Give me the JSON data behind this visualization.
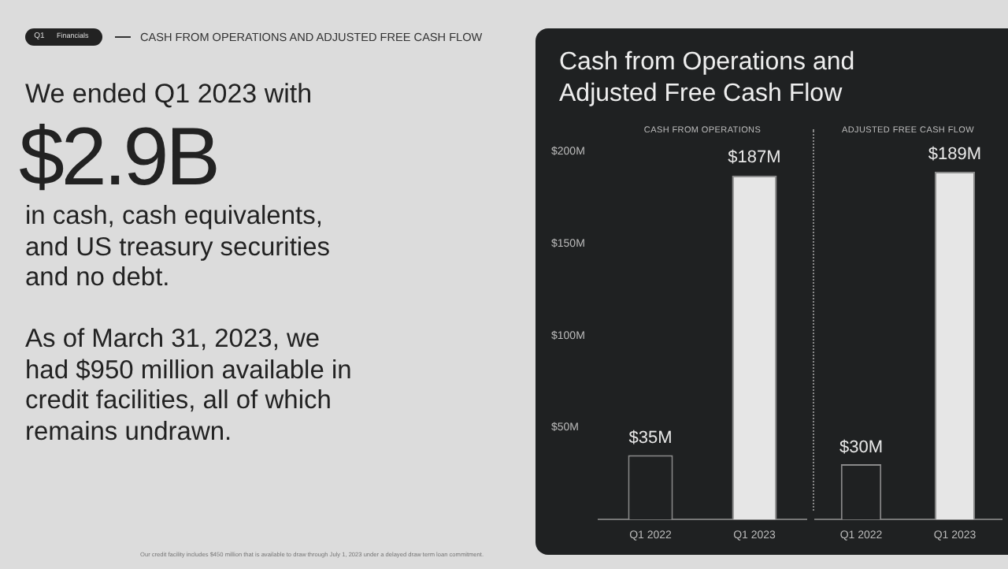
{
  "chart_data": [
    {
      "type": "other",
      "title": "CASH FROM OPERATIONS AND ADJUSTED FREE CASH FLOW",
      "annotations": [
        "Q1",
        "Financials",
        "We ended Q1 2023 with",
        "$2.9B",
        "in cash, cash equivalents, and US treasury securities and no debt.",
        "As of March 31, 2023, we had $950 million available in credit facilities, all of which remains undrawn.",
        "Our credit facility includes $450 million that is available to draw through July 1, 2023 under a delayed draw term loan commitment."
      ]
    },
    {
      "type": "bar",
      "title": "Cash from Operations and Adjusted Free Cash Flow",
      "subtitle": "CASH FROM OPERATIONS",
      "categories": [
        "Q1 2022",
        "Q1 2023"
      ],
      "values": [
        35,
        187
      ],
      "colors": [
        "#1f2122",
        "#e6e6e6"
      ],
      "value_labels": [
        "$35M",
        "$187M"
      ],
      "ylim": [
        0,
        200
      ],
      "yticks": [
        {
          "value": 50,
          "label": "$50M"
        },
        {
          "value": 100,
          "label": "$100M"
        },
        {
          "value": 150,
          "label": "$150M"
        },
        {
          "value": 200,
          "label": "$200M"
        }
      ],
      "grid": false
    },
    {
      "type": "bar",
      "subtitle": "ADJUSTED FREE CASH FLOW",
      "categories": [
        "Q1 2022",
        "Q1 2023"
      ],
      "values": [
        30,
        189
      ],
      "colors": [
        "#1f2122",
        "#e6e6e6"
      ],
      "value_labels": [
        "$30M",
        "$189M"
      ],
      "grid": false,
      "tick_labels": "x"
    }
  ]
}
